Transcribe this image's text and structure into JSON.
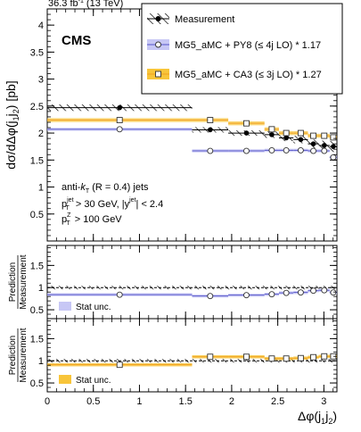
{
  "header": {
    "lumi_label": "36.3 fb",
    "lumi_sup": "-1",
    "energy_label": " (13 TeV)",
    "experiment_label": "CMS"
  },
  "legend": {
    "measurement": "Measurement",
    "py8": "MG5_aMC + PY8 (≤ 4j LO) * 1.17",
    "ca3": "MG5_aMC + CA3 (≤ 3j LO) * 1.27"
  },
  "annotation": {
    "line1_pre": "anti-",
    "line1_k": "k",
    "line1_sub": "T",
    "line1_post": " (R = 0.4) jets",
    "line2_p": "p",
    "line2_sup": "jet",
    "line2_sub": "T",
    "line2_mid": " > 30 GeV, |y",
    "line2_sup2": "jet",
    "line2_post": "| < 2.4",
    "line3_p": "p",
    "line3_sup": "Z",
    "line3_sub": "T",
    "line3_post": " >  100 GeV"
  },
  "ratio_labels": {
    "top_numerator": "Prediction",
    "top_denominator": "Measurement",
    "bottom_numerator": "Prediction",
    "bottom_denominator": "Measurement",
    "stat_unc_top": "Stat unc.",
    "stat_unc_bottom": "Stat unc."
  },
  "axis_labels": {
    "y_main": "dσ/dΔφ(j",
    "y_main_sub1": "1",
    "y_main_mid": "j",
    "y_main_sub2": "2",
    "y_main_post": ") [pb]",
    "x_main": "Δφ(j",
    "x_sub1": "1",
    "x_mid": "j",
    "x_sub2": "2",
    "x_post": ")"
  },
  "colors": {
    "py8_band": "#c7c7f5",
    "py8_line": "#5656c8",
    "ca3_band": "#f8c53a",
    "ca3_line": "#f0a020",
    "data": "#000000"
  },
  "chart_data": {
    "type": "line",
    "xlim": [
      0,
      3.14159
    ],
    "x_ticks": [
      "0",
      "0.5",
      "1",
      "1.5",
      "2",
      "2.5",
      "3"
    ],
    "main": {
      "ylim": [
        0,
        4.3
      ],
      "y_ticks": [
        "0.5",
        "1",
        "1.5",
        "2",
        "2.5",
        "3",
        "3.5",
        "4"
      ]
    },
    "ratio_top": {
      "ylim": [
        0.3,
        1.95
      ],
      "y_ticks": [
        "0.5",
        "1",
        "1.5"
      ]
    },
    "ratio_bottom": {
      "ylim": [
        0.3,
        1.95
      ],
      "y_ticks": [
        "0.5",
        "1",
        "1.5"
      ]
    },
    "bins": [
      {
        "lo": 0.0,
        "hi": 1.571,
        "x": 0.785
      },
      {
        "lo": 1.571,
        "hi": 1.963,
        "x": 1.767
      },
      {
        "lo": 1.963,
        "hi": 2.356,
        "x": 2.16
      },
      {
        "lo": 2.356,
        "hi": 2.513,
        "x": 2.435
      },
      {
        "lo": 2.513,
        "hi": 2.67,
        "x": 2.592
      },
      {
        "lo": 2.67,
        "hi": 2.827,
        "x": 2.749
      },
      {
        "lo": 2.827,
        "hi": 2.945,
        "x": 2.886
      },
      {
        "lo": 2.945,
        "hi": 3.063,
        "x": 3.004
      },
      {
        "lo": 3.063,
        "hi": 3.142,
        "x": 3.102
      }
    ],
    "series": [
      {
        "name": "Measurement",
        "values": [
          2.47,
          2.06,
          2.0,
          1.97,
          1.91,
          1.88,
          1.8,
          1.77,
          1.75
        ],
        "unc": [
          0.06,
          0.05,
          0.05,
          0.06,
          0.06,
          0.07,
          0.08,
          0.09,
          0.1
        ]
      },
      {
        "name": "MG5_aMC + PY8 (≤ 4j LO) * 1.17",
        "values": [
          2.07,
          1.67,
          1.67,
          1.68,
          1.68,
          1.68,
          1.67,
          1.67,
          1.55
        ]
      },
      {
        "name": "MG5_aMC + CA3 (≤ 3j LO) * 1.27",
        "values": [
          2.24,
          2.24,
          2.18,
          2.07,
          2.0,
          2.0,
          1.95,
          1.95,
          1.92
        ]
      }
    ],
    "ratio_py8": [
      0.84,
      0.81,
      0.83,
      0.85,
      0.88,
      0.89,
      0.93,
      0.94,
      0.89
    ],
    "ratio_ca3": [
      0.91,
      1.09,
      1.09,
      1.05,
      1.05,
      1.06,
      1.08,
      1.1,
      1.1
    ]
  }
}
